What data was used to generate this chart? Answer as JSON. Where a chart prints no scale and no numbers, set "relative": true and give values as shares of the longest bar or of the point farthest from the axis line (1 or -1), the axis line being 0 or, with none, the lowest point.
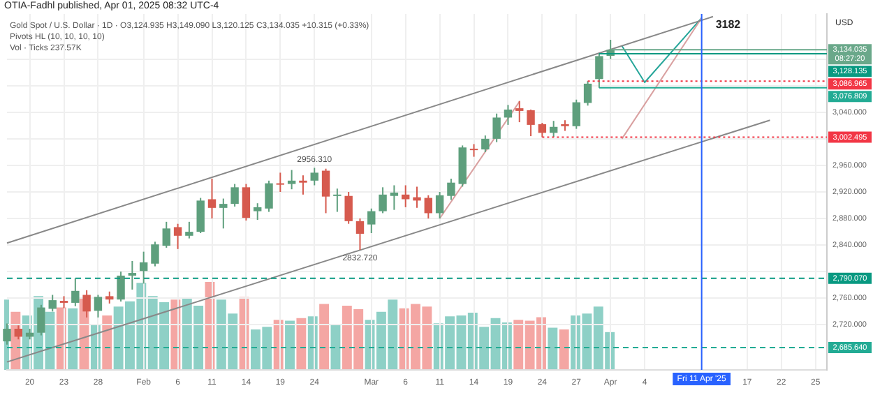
{
  "chart_data": [
    {
      "type": "candlestick",
      "title": "OTIA-Fadhl published, Apr 01, 2025 08:32 UTC-4",
      "subtitle": "Gold Spot / U.S. Dollar · 1D · O3,124.935 H3,149.090 L3,120.125 C3,134.035 +10.315 (+0.33%)",
      "ylabel": "USD",
      "annotations": [
        "Pivots HL (10, 10, 10, 10)",
        "Vol · Ticks 237.57K",
        {
          "text": "2956.310",
          "y": 2956.31
        },
        {
          "text": "2832.720",
          "y": 2832.72
        },
        {
          "text": "3182",
          "x": "Fri 11 Apr '25",
          "y": 3182
        }
      ],
      "categories": [
        null,
        null,
        "20",
        null,
        null,
        "23",
        null,
        null,
        "28",
        null,
        null,
        null,
        "Feb",
        null,
        null,
        "6",
        null,
        null,
        "11",
        null,
        null,
        "14",
        null,
        null,
        "19",
        null,
        null,
        "24",
        null,
        null,
        null,
        null,
        "Mar",
        null,
        null,
        "6",
        null,
        null,
        "11",
        null,
        null,
        "14",
        null,
        null,
        "19",
        null,
        null,
        "24",
        null,
        null,
        "27",
        null,
        null,
        "Apr",
        null,
        null,
        "4",
        null,
        null,
        null,
        null,
        "Fri 11 Apr '25",
        null,
        null,
        null,
        "17",
        null,
        null,
        "22",
        null,
        null,
        "25",
        null
      ],
      "ohlc": [
        [
          2695,
          2722,
          2690,
          2714
        ],
        [
          2714,
          2719,
          2698,
          2702
        ],
        [
          2702,
          2714,
          2698,
          2708
        ],
        [
          2708,
          2750,
          2704,
          2746
        ],
        [
          2744,
          2765,
          2740,
          2757
        ],
        [
          2756,
          2763,
          2745,
          2753
        ],
        [
          2753,
          2790,
          2748,
          2771
        ],
        [
          2765,
          2772,
          2731,
          2740
        ],
        [
          2741,
          2765,
          2731,
          2762
        ],
        [
          2763,
          2770,
          2752,
          2758
        ],
        [
          2758,
          2800,
          2755,
          2794
        ],
        [
          2794,
          2816,
          2773,
          2798
        ],
        [
          2801,
          2830,
          2782,
          2814
        ],
        [
          2812,
          2845,
          2808,
          2841
        ],
        [
          2839,
          2875,
          2836,
          2865
        ],
        [
          2867,
          2872,
          2834,
          2854
        ],
        [
          2854,
          2875,
          2850,
          2860
        ],
        [
          2860,
          2911,
          2858,
          2907
        ],
        [
          2909,
          2940,
          2880,
          2896
        ],
        [
          2896,
          2910,
          2865,
          2902
        ],
        [
          2902,
          2932,
          2898,
          2927
        ],
        [
          2927,
          2932,
          2877,
          2881
        ],
        [
          2891,
          2903,
          2878,
          2897
        ],
        [
          2895,
          2937,
          2890,
          2933
        ],
        [
          2933,
          2949,
          2920,
          2931
        ],
        [
          2932,
          2953,
          2924,
          2937
        ],
        [
          2937,
          2945,
          2916,
          2934
        ],
        [
          2937,
          2956.31,
          2930,
          2949
        ],
        [
          2952,
          2955,
          2888,
          2913
        ],
        [
          2914,
          2925,
          2890,
          2916
        ],
        [
          2914,
          2920,
          2872,
          2876
        ],
        [
          2876,
          2880,
          2832.72,
          2857
        ],
        [
          2871,
          2895,
          2858,
          2891
        ],
        [
          2891,
          2927,
          2888,
          2916
        ],
        [
          2914,
          2930,
          2893,
          2919
        ],
        [
          2916,
          2930,
          2897,
          2909
        ],
        [
          2912,
          2928,
          2896,
          2907
        ],
        [
          2911,
          2915,
          2880,
          2888
        ],
        [
          2888,
          2920,
          2880,
          2915
        ],
        [
          2914,
          2940,
          2908,
          2934
        ],
        [
          2932,
          2990,
          2928,
          2987
        ],
        [
          2985,
          2992,
          2973,
          2984
        ],
        [
          2984,
          3005,
          2980,
          3000
        ],
        [
          3000,
          3038,
          2995,
          3032
        ],
        [
          3032,
          3051,
          3021,
          3044
        ],
        [
          3046,
          3057,
          3025,
          3042
        ],
        [
          3043,
          3044,
          3004,
          3021
        ],
        [
          3022,
          3024,
          3002.495,
          3009
        ],
        [
          3009,
          3027,
          3003,
          3018
        ],
        [
          3022,
          3028,
          3012,
          3019
        ],
        [
          3019,
          3059,
          3015,
          3055
        ],
        [
          3054,
          3086.965,
          3050,
          3083
        ],
        [
          3090,
          3128.135,
          3076.809,
          3124.5
        ],
        [
          3124.935,
          3149.09,
          3120.125,
          3134.035
        ],
        null,
        null,
        null,
        null,
        null,
        null,
        null,
        null,
        null,
        null,
        null,
        null,
        null,
        null,
        null,
        null,
        null,
        null,
        null
      ],
      "colors": [
        "#5e9f7d",
        "#d65a4e",
        "#5e9f7d",
        "#5e9f7d",
        "#5e9f7d",
        "#d65a4e",
        "#5e9f7d",
        "#d65a4e",
        "#5e9f7d",
        "#d65a4e",
        "#5e9f7d",
        "#5e9f7d",
        "#5e9f7d",
        "#5e9f7d",
        "#5e9f7d",
        "#d65a4e",
        "#5e9f7d",
        "#5e9f7d",
        "#d65a4e",
        "#5e9f7d",
        "#5e9f7d",
        "#d65a4e",
        "#5e9f7d",
        "#5e9f7d",
        "#d65a4e",
        "#5e9f7d",
        "#d65a4e",
        "#5e9f7d",
        "#d65a4e",
        "#5e9f7d",
        "#d65a4e",
        "#d65a4e",
        "#5e9f7d",
        "#5e9f7d",
        "#5e9f7d",
        "#d65a4e",
        "#d65a4e",
        "#d65a4e",
        "#5e9f7d",
        "#5e9f7d",
        "#5e9f7d",
        "#d65a4e",
        "#5e9f7d",
        "#5e9f7d",
        "#5e9f7d",
        "#d65a4e",
        "#d65a4e",
        "#d65a4e",
        "#5e9f7d",
        "#d65a4e",
        "#5e9f7d",
        "#5e9f7d",
        "#5e9f7d",
        "#5e9f7d",
        null,
        null,
        null,
        null,
        null,
        null,
        null,
        null,
        null,
        null,
        null,
        null,
        null,
        null,
        null,
        null,
        null,
        null,
        null
      ],
      "series": [
        {
          "type": "line",
          "color": "#888888",
          "values": [
            2843,
            null,
            null,
            null,
            null,
            null,
            null,
            null,
            null,
            null,
            null,
            null,
            null,
            null,
            null,
            null,
            null,
            null,
            null,
            null,
            null,
            null,
            null,
            null,
            null,
            null,
            null,
            null,
            null,
            null,
            null,
            null,
            null,
            null,
            null,
            null,
            null,
            null,
            null,
            null,
            null,
            null,
            null,
            null,
            null,
            null,
            null,
            null,
            null,
            null,
            null,
            null,
            null,
            null,
            null,
            null,
            null,
            null,
            null,
            null,
            null,
            null,
            3184,
            null,
            null,
            null,
            null,
            null,
            null,
            null,
            null,
            null,
            null
          ]
        },
        {
          "type": "line",
          "color": "#888888",
          "values": [
            2664,
            null,
            null,
            null,
            null,
            null,
            null,
            null,
            null,
            null,
            null,
            null,
            null,
            null,
            null,
            null,
            null,
            null,
            null,
            null,
            null,
            null,
            null,
            null,
            null,
            null,
            null,
            null,
            null,
            null,
            null,
            null,
            null,
            null,
            null,
            null,
            null,
            null,
            null,
            null,
            null,
            null,
            null,
            null,
            null,
            null,
            null,
            null,
            null,
            null,
            null,
            null,
            null,
            null,
            null,
            null,
            null,
            null,
            null,
            null,
            null,
            null,
            null,
            null,
            null,
            null,
            null,
            3028,
            null,
            null,
            null,
            null,
            null
          ]
        },
        {
          "type": "line",
          "color": "#d9a0a0",
          "values": [
            null,
            null,
            null,
            null,
            null,
            null,
            null,
            null,
            null,
            null,
            null,
            null,
            null,
            null,
            null,
            null,
            null,
            null,
            null,
            null,
            null,
            null,
            null,
            null,
            null,
            null,
            null,
            null,
            null,
            null,
            null,
            null,
            null,
            null,
            null,
            null,
            null,
            null,
            2880,
            null,
            null,
            null,
            null,
            null,
            null,
            3056,
            null,
            null,
            null,
            null,
            null,
            null,
            null,
            null,
            null,
            null,
            null,
            null,
            null,
            null,
            null,
            null,
            null,
            null,
            null,
            null,
            null,
            null,
            null,
            null,
            null,
            null,
            null
          ]
        },
        {
          "type": "line",
          "color": "#d9a0a0",
          "values": [
            null,
            null,
            null,
            null,
            null,
            null,
            null,
            null,
            null,
            null,
            null,
            null,
            null,
            null,
            null,
            null,
            null,
            null,
            null,
            null,
            null,
            null,
            null,
            null,
            null,
            null,
            null,
            null,
            null,
            null,
            null,
            null,
            null,
            null,
            null,
            null,
            null,
            null,
            null,
            null,
            null,
            null,
            null,
            null,
            null,
            null,
            null,
            null,
            null,
            null,
            null,
            null,
            null,
            null,
            3000,
            null,
            null,
            null,
            null,
            null,
            null,
            3182,
            null,
            null,
            null,
            null,
            null,
            null,
            null,
            null,
            null,
            null,
            null
          ]
        },
        {
          "type": "line",
          "color": "#26a69a",
          "values": [
            null,
            null,
            null,
            null,
            null,
            null,
            null,
            null,
            null,
            null,
            null,
            null,
            null,
            null,
            null,
            null,
            null,
            null,
            null,
            null,
            null,
            null,
            null,
            null,
            null,
            null,
            null,
            null,
            null,
            null,
            null,
            null,
            null,
            null,
            null,
            null,
            null,
            null,
            null,
            null,
            null,
            null,
            null,
            null,
            null,
            null,
            null,
            null,
            null,
            null,
            null,
            null,
            null,
            null,
            3140,
            null,
            3085,
            null,
            null,
            null,
            null,
            3182,
            null,
            null,
            null,
            null,
            null,
            null,
            null,
            null,
            null,
            null,
            null
          ]
        }
      ],
      "ylim": [
        2652,
        3188
      ],
      "yticks": [
        {
          "value": 2720,
          "label": "2,720.000"
        },
        {
          "value": 2760,
          "label": "2,760.000"
        },
        {
          "value": 2800,
          "label": null
        },
        {
          "value": 2840,
          "label": "2,840.000"
        },
        {
          "value": 2880,
          "label": "2,880.000"
        },
        {
          "value": 2920,
          "label": "2,920.000"
        },
        {
          "value": 2960,
          "label": "2,960.000"
        },
        {
          "value": 3000,
          "label": null
        },
        {
          "value": 3040,
          "label": "3,040.000"
        },
        {
          "value": 3080,
          "label": null
        },
        {
          "value": 3120,
          "label": null
        }
      ],
      "ref_lines": [
        {
          "axis": "y",
          "value": 3134.035,
          "label": "3,134.035\n08:27:20",
          "color": "#6aa88a",
          "line_style": "solid"
        },
        {
          "axis": "y",
          "value": 3128.135,
          "label": "3,128.135",
          "color": "#089981",
          "line_style": "solid"
        },
        {
          "axis": "y",
          "value": 3086.965,
          "label": "3,086.965",
          "color": "#f23645",
          "line_style": "dotted"
        },
        {
          "axis": "y",
          "value": 3076.809,
          "label": "3,076.809",
          "color": "#22ab94",
          "line_style": "solid"
        },
        {
          "axis": "y",
          "value": 3002.495,
          "label": "3,002.495",
          "color": "#f23645",
          "line_style": "dotted"
        },
        {
          "axis": "y",
          "value": 2790.07,
          "label": "2,790.070",
          "color": "#089981",
          "line_style": "dashed"
        },
        {
          "axis": "y",
          "value": 2685.64,
          "label": "2,685.640",
          "color": "#22ab94",
          "line_style": "dashed"
        },
        {
          "axis": "x",
          "value": "Fri 11 Apr '25",
          "color": "#2962ff",
          "line_style": "solid"
        }
      ],
      "grid": true,
      "marker": "none"
    },
    {
      "type": "bar",
      "relative": true,
      "tick_labels": false,
      "categories": [
        null,
        null,
        "20",
        null,
        null,
        "23",
        null,
        null,
        "28",
        null,
        null,
        null,
        "Feb",
        null,
        null,
        "6",
        null,
        null,
        "11",
        null,
        null,
        "14",
        null,
        null,
        "19",
        null,
        null,
        "24",
        null,
        null,
        null,
        null,
        "Mar",
        null,
        null,
        "6",
        null,
        null,
        "11",
        null,
        null,
        "14",
        null,
        null,
        "19",
        null,
        null,
        "24",
        null,
        null,
        "27",
        null,
        null,
        "Apr",
        null,
        null,
        "4",
        null,
        null,
        null,
        null,
        "Fri 11 Apr '25",
        null,
        null,
        null,
        "17",
        null,
        null,
        "22",
        null,
        null,
        "25",
        null
      ],
      "values": [
        0.8,
        0.66,
        0.62,
        0.84,
        0.66,
        0.71,
        0.7,
        0.81,
        0.51,
        0.62,
        0.72,
        0.78,
        0.99,
        0.84,
        0.77,
        0.8,
        0.82,
        0.73,
        1,
        0.8,
        0.64,
        0.83,
        0.46,
        0.49,
        0.57,
        0.56,
        0.59,
        0.61,
        0.75,
        0.51,
        0.73,
        0.69,
        0.57,
        0.66,
        0.8,
        0.7,
        0.75,
        0.72,
        0.53,
        0.61,
        0.62,
        0.65,
        0.49,
        0.59,
        0.54,
        0.57,
        0.56,
        0.6,
        0.48,
        0.46,
        0.62,
        0.64,
        0.72,
        0.43,
        null,
        null,
        null,
        null,
        null,
        null,
        null,
        null,
        null,
        null,
        null,
        null,
        null,
        null,
        null,
        null,
        null,
        null,
        null
      ],
      "colors": [
        "#8ed0c6",
        "#f4a6a3",
        "#8ed0c6",
        "#8ed0c6",
        "#8ed0c6",
        "#f4a6a3",
        "#8ed0c6",
        "#f4a6a3",
        "#8ed0c6",
        "#f4a6a3",
        "#8ed0c6",
        "#8ed0c6",
        "#8ed0c6",
        "#8ed0c6",
        "#8ed0c6",
        "#f4a6a3",
        "#8ed0c6",
        "#8ed0c6",
        "#f4a6a3",
        "#8ed0c6",
        "#8ed0c6",
        "#f4a6a3",
        "#8ed0c6",
        "#8ed0c6",
        "#f4a6a3",
        "#8ed0c6",
        "#f4a6a3",
        "#8ed0c6",
        "#f4a6a3",
        "#8ed0c6",
        "#f4a6a3",
        "#f4a6a3",
        "#8ed0c6",
        "#8ed0c6",
        "#8ed0c6",
        "#f4a6a3",
        "#f4a6a3",
        "#f4a6a3",
        "#8ed0c6",
        "#8ed0c6",
        "#8ed0c6",
        "#8ed0c6",
        "#8ed0c6",
        "#8ed0c6",
        "#8ed0c6",
        "#f4a6a3",
        "#f4a6a3",
        "#f4a6a3",
        "#8ed0c6",
        "#f4a6a3",
        "#8ed0c6",
        "#8ed0c6",
        "#8ed0c6",
        "#8ed0c6",
        null,
        null,
        null,
        null,
        null,
        null,
        null,
        null,
        null,
        null,
        null,
        null,
        null,
        null,
        null,
        null,
        null,
        null,
        null
      ]
    }
  ]
}
